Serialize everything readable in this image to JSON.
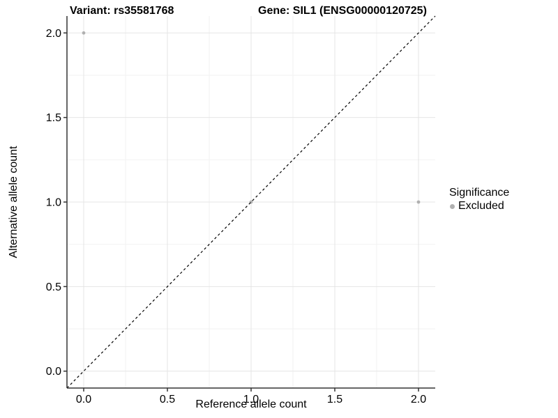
{
  "titles": {
    "variant": "Variant: rs35581768",
    "gene": "Gene: SIL1 (ENSG00000120725)"
  },
  "legend": {
    "title": "Significance",
    "position": "right",
    "items": [
      {
        "label": "Excluded",
        "color": "#b0b0b0"
      }
    ]
  },
  "colors": {
    "background": "#ffffff",
    "point": "#b0b0b0",
    "grid_major": "#e5e5e5",
    "grid_minor": "#f2f2f2",
    "axis": "#333333",
    "tick_label": "#000000",
    "reference_line": "#000000"
  },
  "chart_data": {
    "type": "scatter",
    "title": "Variant: rs35581768    Gene: SIL1 (ENSG00000120725)",
    "xlabel": "Reference allele count",
    "ylabel": "Alternative allele count",
    "xlim": [
      -0.1,
      2.1
    ],
    "ylim": [
      -0.1,
      2.1
    ],
    "xticks": [
      0.0,
      0.5,
      1.0,
      1.5,
      2.0
    ],
    "yticks": [
      0.0,
      0.5,
      1.0,
      1.5,
      2.0
    ],
    "xtick_labels": [
      "0.0",
      "0.5",
      "1.0",
      "1.5",
      "2.0"
    ],
    "ytick_labels": [
      "0.0",
      "0.5",
      "1.0",
      "1.5",
      "2.0"
    ],
    "minor_ticks": [
      0.25,
      0.75,
      1.25,
      1.75
    ],
    "grid": true,
    "legend_position": "right",
    "reference_line": {
      "kind": "identity",
      "style": "dashed"
    },
    "series": [
      {
        "name": "Excluded",
        "color": "#b0b0b0",
        "points": [
          {
            "x": 0,
            "y": 2
          },
          {
            "x": 1,
            "y": 1
          },
          {
            "x": 2,
            "y": 1
          }
        ]
      }
    ]
  }
}
